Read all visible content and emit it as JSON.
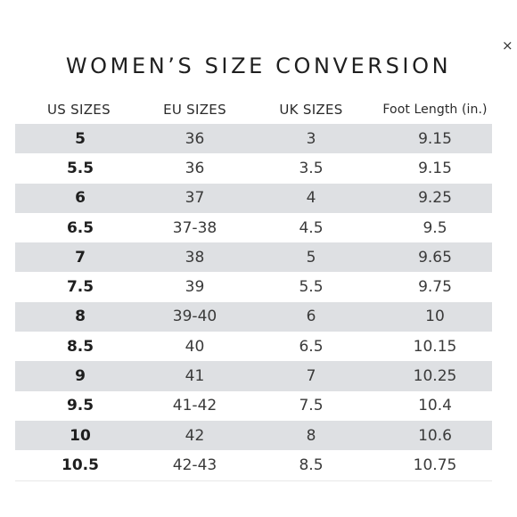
{
  "close_glyph": "×",
  "title": "WOMEN’S SIZE CONVERSION",
  "table": {
    "headers": [
      "US SIZES",
      "EU SIZES",
      "UK SIZES",
      "Foot Length (in.)"
    ],
    "rows": [
      [
        "5",
        "36",
        "3",
        "9.15"
      ],
      [
        "5.5",
        "36",
        "3.5",
        "9.15"
      ],
      [
        "6",
        "37",
        "4",
        "9.25"
      ],
      [
        "6.5",
        "37-38",
        "4.5",
        "9.5"
      ],
      [
        "7",
        "38",
        "5",
        "9.65"
      ],
      [
        "7.5",
        "39",
        "5.5",
        "9.75"
      ],
      [
        "8",
        "39-40",
        "6",
        "10"
      ],
      [
        "8.5",
        "40",
        "6.5",
        "10.15"
      ],
      [
        "9",
        "41",
        "7",
        "10.25"
      ],
      [
        "9.5",
        "41-42",
        "7.5",
        "10.4"
      ],
      [
        "10",
        "42",
        "8",
        "10.6"
      ],
      [
        "10.5",
        "42-43",
        "8.5",
        "10.75"
      ]
    ]
  },
  "colors": {
    "row_shade": "#dee0e3",
    "text": "#2b2b2b"
  }
}
